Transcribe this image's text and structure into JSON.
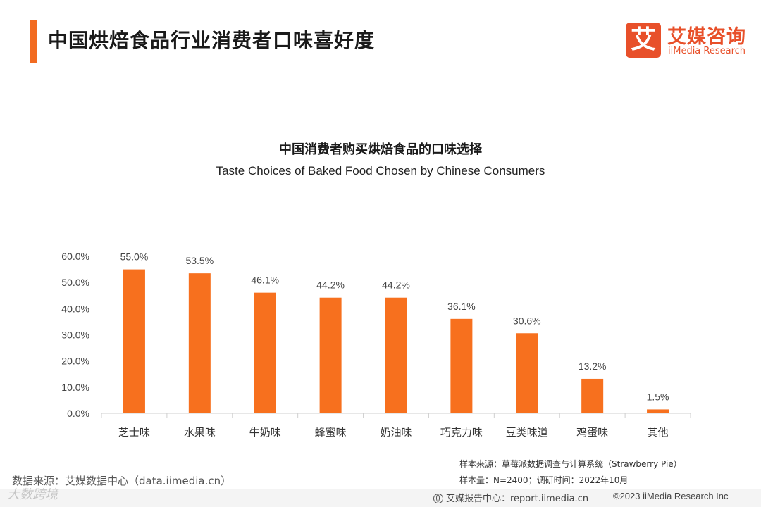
{
  "header": {
    "title": "中国烘焙食品行业消费者口味喜好度",
    "accent_color": "#f26b21"
  },
  "logo": {
    "mark": "艾",
    "name_cn": "艾媒咨询",
    "name_en": "iiMedia Research",
    "color": "#e8502a"
  },
  "chart_data": {
    "type": "bar",
    "title": "中国消费者购买烘焙食品的口味选择",
    "subtitle": "Taste Choices of Baked Food  Chosen by Chinese Consumers",
    "categories": [
      "芝士味",
      "水果味",
      "牛奶味",
      "蜂蜜味",
      "奶油味",
      "巧克力味",
      "豆类味道",
      "鸡蛋味",
      "其他"
    ],
    "values": [
      55.0,
      53.5,
      46.1,
      44.2,
      44.2,
      36.1,
      30.6,
      13.2,
      1.5
    ],
    "data_labels": [
      "55.0%",
      "53.5%",
      "46.1%",
      "44.2%",
      "44.2%",
      "36.1%",
      "30.6%",
      "13.2%",
      "1.5%"
    ],
    "yticks": [
      0,
      10,
      20,
      30,
      40,
      50,
      60
    ],
    "ytick_labels": [
      "0.0%",
      "10.0%",
      "20.0%",
      "30.0%",
      "40.0%",
      "50.0%",
      "60.0%"
    ],
    "ylim": [
      0,
      60
    ],
    "grid": false,
    "legend": "none",
    "bar_color": "#f7701e",
    "xlabel": "",
    "ylabel": ""
  },
  "footer": {
    "data_source": "数据来源：艾媒数据中心（data.iimedia.cn）",
    "sample_source": "样本来源：草莓派数据调查与计算系统（Strawberry Pie）",
    "sample_size": "样本量：N=2400；调研时间：2022年10月",
    "report_center": "艾媒报告中心：report.iimedia.cn",
    "copyright": "©2023 iiMedia Research  Inc",
    "watermark": "大数跨境"
  }
}
